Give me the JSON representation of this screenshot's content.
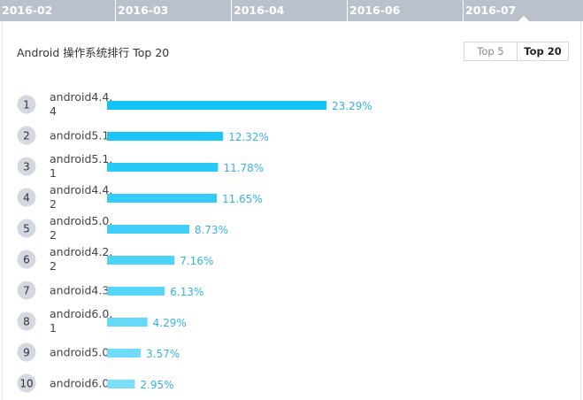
{
  "tabs": [
    {
      "label": "2016-02",
      "active": false
    },
    {
      "label": "2016-03",
      "active": false
    },
    {
      "label": "2016-04",
      "active": false
    },
    {
      "label": "2016-06",
      "active": false
    },
    {
      "label": "2016-07",
      "active": true
    }
  ],
  "panel": {
    "title": "Android 操作系统排行 Top 20",
    "toggle": {
      "top5": "Top 5",
      "top20": "Top 20",
      "selected": "Top 20"
    }
  },
  "colors": {
    "tab_bg": "#b9c1cc",
    "bar_start": "#0fc3f6",
    "bar_end": "#7cdffa",
    "value_text": "#36b3e6",
    "rank_circle": "#d3d8e1"
  },
  "chart_data": {
    "type": "bar",
    "orientation": "horizontal",
    "title": "Android 操作系统排行 Top 20",
    "ranks": [
      "1",
      "2",
      "3",
      "4",
      "5",
      "6",
      "7",
      "8",
      "9",
      "10"
    ],
    "categories": [
      [
        "android4.4.",
        "4"
      ],
      [
        "android5.1"
      ],
      [
        "android5.1.",
        "1"
      ],
      [
        "android4.4.",
        "2"
      ],
      [
        "android5.0.",
        "2"
      ],
      [
        "android4.2.",
        "2"
      ],
      [
        "android4.3"
      ],
      [
        "android6.0.",
        "1"
      ],
      [
        "android5.0"
      ],
      [
        "android6.0"
      ]
    ],
    "values": [
      23.29,
      12.32,
      11.78,
      11.65,
      8.73,
      7.16,
      6.13,
      4.29,
      3.57,
      2.95
    ],
    "value_labels": [
      "23.29%",
      "12.32%",
      "11.78%",
      "11.65%",
      "8.73%",
      "7.16%",
      "6.13%",
      "4.29%",
      "3.57%",
      "2.95%"
    ],
    "xlim": [
      0,
      23.29
    ],
    "grid": false
  }
}
